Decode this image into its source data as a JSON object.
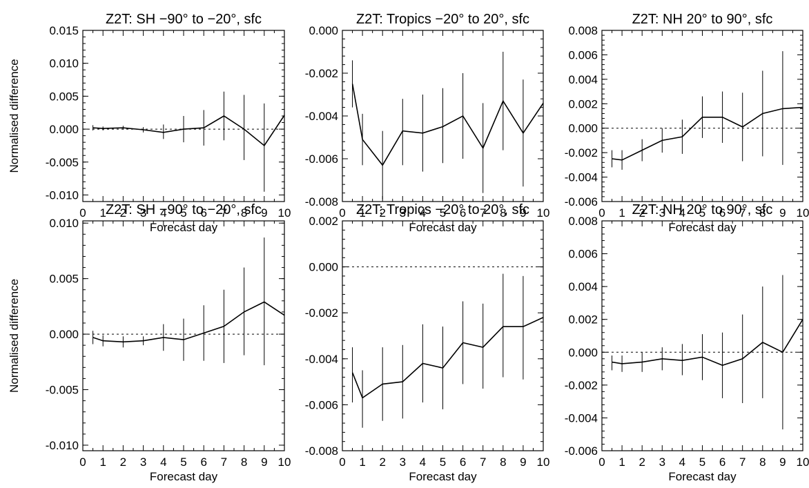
{
  "chart_data": [
    {
      "type": "line",
      "title": "Z2T: SH −90° to −20°, sfc",
      "xlabel": "Forecast day",
      "ylabel": "Normalised difference",
      "xlim": [
        0,
        10
      ],
      "ylim": [
        -0.011,
        0.015
      ],
      "xticks": [
        "0",
        "1",
        "2",
        "3",
        "4",
        "5",
        "6",
        "7",
        "8",
        "9",
        "10"
      ],
      "yticks": [
        "-0.010",
        "-0.005",
        "0.000",
        "0.005",
        "0.010",
        "0.015"
      ],
      "zero_line": true,
      "x": [
        0.5,
        1,
        2,
        3,
        4,
        5,
        6,
        7,
        8,
        9,
        10
      ],
      "values": [
        0.0002,
        0.0001,
        0.0002,
        -0.0001,
        -0.0005,
        0.0,
        0.0002,
        0.002,
        0.0,
        -0.0025,
        0.0021
      ],
      "err_low": [
        -0.0002,
        -0.0002,
        -0.0001,
        -0.0005,
        -0.0015,
        -0.002,
        -0.0025,
        -0.0017,
        -0.0047,
        -0.0095,
        -0.0068
      ],
      "err_high": [
        0.0006,
        0.0004,
        0.0005,
        0.0003,
        0.0007,
        0.002,
        0.0029,
        0.0057,
        0.0052,
        0.0039,
        0.0109
      ]
    },
    {
      "type": "line",
      "title": "Z2T: Tropics −20° to 20°, sfc",
      "xlabel": "Forecast day",
      "ylabel": "",
      "xlim": [
        0,
        10
      ],
      "ylim": [
        -0.008,
        0.0
      ],
      "xticks": [
        "0",
        "1",
        "2",
        "3",
        "4",
        "5",
        "6",
        "7",
        "8",
        "9",
        "10"
      ],
      "yticks": [
        "-0.008",
        "-0.006",
        "-0.004",
        "-0.002",
        "0.000"
      ],
      "zero_line": false,
      "x": [
        0.5,
        1,
        2,
        3,
        4,
        5,
        6,
        7,
        8,
        9,
        10
      ],
      "values": [
        -0.0025,
        -0.0051,
        -0.0063,
        -0.0047,
        -0.0048,
        -0.0045,
        -0.004,
        -0.0055,
        -0.0033,
        -0.0048,
        -0.0034
      ],
      "err_low": [
        -0.0036,
        -0.0063,
        -0.0079,
        -0.0063,
        -0.0066,
        -0.0062,
        -0.006,
        -0.0076,
        -0.0056,
        -0.0073,
        -0.0068
      ],
      "err_high": [
        -0.0014,
        -0.0039,
        -0.0047,
        -0.0032,
        -0.003,
        -0.0027,
        -0.002,
        -0.0034,
        -0.001,
        -0.0023,
        0.0
      ]
    },
    {
      "type": "line",
      "title": "Z2T: NH 20° to 90°, sfc",
      "xlabel": "Forecast day",
      "ylabel": "",
      "xlim": [
        0,
        10
      ],
      "ylim": [
        -0.006,
        0.008
      ],
      "xticks": [
        "0",
        "1",
        "2",
        "3",
        "4",
        "5",
        "6",
        "7",
        "8",
        "9",
        "10"
      ],
      "yticks": [
        "-0.006",
        "-0.004",
        "-0.002",
        "0.000",
        "0.002",
        "0.004",
        "0.006",
        "0.008"
      ],
      "zero_line": true,
      "x": [
        0.5,
        1,
        2,
        3,
        4,
        5,
        6,
        7,
        8,
        9,
        10
      ],
      "values": [
        -0.0025,
        -0.0026,
        -0.0018,
        -0.001,
        -0.0007,
        0.0009,
        0.0009,
        0.0001,
        0.0012,
        0.0016,
        0.0017
      ],
      "err_low": [
        -0.0032,
        -0.0034,
        -0.0027,
        -0.002,
        -0.0021,
        -0.0008,
        -0.0012,
        -0.0027,
        -0.0023,
        -0.003,
        -0.0045
      ],
      "err_high": [
        -0.0018,
        -0.0018,
        -0.0009,
        0.0,
        0.0007,
        0.0026,
        0.003,
        0.0029,
        0.0047,
        0.0063,
        0.008
      ]
    },
    {
      "type": "line",
      "title": "Z2T: SH −90° to −20°, sfc",
      "xlabel": "Forecast day",
      "ylabel": "Normalised difference",
      "xlim": [
        0,
        10
      ],
      "ylim": [
        -0.0105,
        0.0102
      ],
      "xticks": [
        "0",
        "1",
        "2",
        "3",
        "4",
        "5",
        "6",
        "7",
        "8",
        "9",
        "10"
      ],
      "yticks": [
        "-0.010",
        "-0.005",
        "0.000",
        "0.005",
        "0.010"
      ],
      "zero_line": true,
      "x": [
        0.5,
        1,
        2,
        3,
        4,
        5,
        6,
        7,
        8,
        9,
        10
      ],
      "values": [
        -0.0003,
        -0.0006,
        -0.0007,
        -0.0006,
        -0.0003,
        -0.0005,
        0.0001,
        0.0007,
        0.002,
        0.0029,
        0.0017
      ],
      "err_low": [
        -0.0009,
        -0.0011,
        -0.0012,
        -0.001,
        -0.0015,
        -0.0024,
        -0.0024,
        -0.0026,
        -0.0019,
        -0.0028,
        -0.0059
      ],
      "err_high": [
        0.0003,
        -0.0001,
        -0.0002,
        -0.0002,
        0.0009,
        0.0014,
        0.0026,
        0.004,
        0.006,
        0.0087,
        0.0093
      ]
    },
    {
      "type": "line",
      "title": "Z2T: Tropics −20° to 20°, sfc",
      "xlabel": "Forecast day",
      "ylabel": "",
      "xlim": [
        0,
        10
      ],
      "ylim": [
        -0.008,
        0.002
      ],
      "xticks": [
        "0",
        "1",
        "2",
        "3",
        "4",
        "5",
        "6",
        "7",
        "8",
        "9",
        "10"
      ],
      "yticks": [
        "-0.008",
        "-0.006",
        "-0.004",
        "-0.002",
        "0.000",
        "0.002"
      ],
      "zero_line": true,
      "x": [
        0.5,
        1,
        2,
        3,
        4,
        5,
        6,
        7,
        8,
        9,
        10
      ],
      "values": [
        -0.0046,
        -0.0057,
        -0.0051,
        -0.005,
        -0.0042,
        -0.0044,
        -0.0033,
        -0.0035,
        -0.0026,
        -0.0026,
        -0.0022
      ],
      "err_low": [
        -0.0059,
        -0.007,
        -0.0067,
        -0.0066,
        -0.0059,
        -0.0062,
        -0.0051,
        -0.0053,
        -0.0048,
        -0.0049,
        -0.0052
      ],
      "err_high": [
        -0.0035,
        -0.0045,
        -0.0035,
        -0.0034,
        -0.0025,
        -0.0026,
        -0.0015,
        -0.0016,
        -0.0003,
        -0.0004,
        0.0008
      ]
    },
    {
      "type": "line",
      "title": "Z2T: NH 20° to 90°, sfc",
      "xlabel": "Forecast day",
      "ylabel": "",
      "xlim": [
        0,
        10
      ],
      "ylim": [
        -0.006,
        0.008
      ],
      "xticks": [
        "0",
        "1",
        "2",
        "3",
        "4",
        "5",
        "6",
        "7",
        "8",
        "9",
        "10"
      ],
      "yticks": [
        "-0.006",
        "-0.004",
        "-0.002",
        "0.000",
        "0.002",
        "0.004",
        "0.006",
        "0.008"
      ],
      "zero_line": true,
      "x": [
        0.5,
        1,
        2,
        3,
        4,
        5,
        6,
        7,
        8,
        9,
        10
      ],
      "values": [
        -0.0006,
        -0.0007,
        -0.0006,
        -0.0004,
        -0.0005,
        -0.0003,
        -0.0008,
        -0.0004,
        0.0006,
        0.0,
        0.002
      ],
      "err_low": [
        -0.0011,
        -0.0012,
        -0.0012,
        -0.0011,
        -0.0014,
        -0.0017,
        -0.0028,
        -0.0031,
        -0.0028,
        -0.0047,
        -0.0042
      ],
      "err_high": [
        -0.0002,
        -0.0002,
        0.0,
        0.0003,
        0.0005,
        0.0011,
        0.0012,
        0.0023,
        0.004,
        0.0047,
        0.0082
      ]
    }
  ]
}
